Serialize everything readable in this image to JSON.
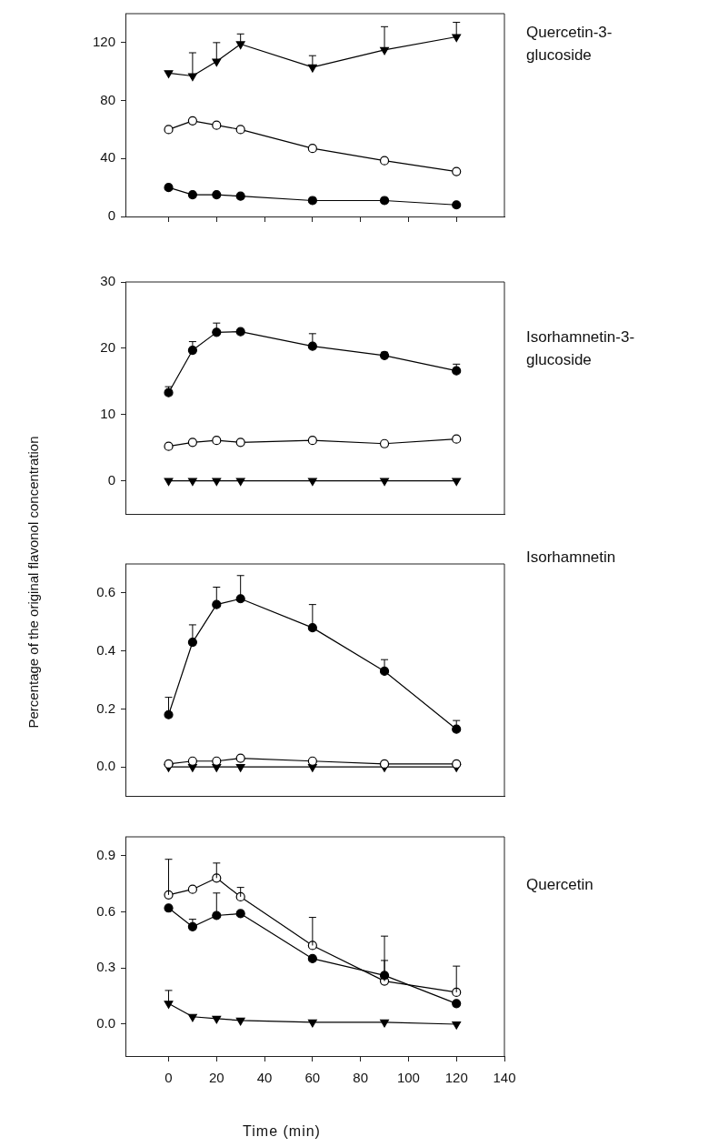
{
  "chart_data": [
    {
      "type": "line",
      "annotations": [
        "Quercetin-3-glucoside"
      ],
      "x": [
        0,
        10,
        20,
        30,
        60,
        90,
        120
      ],
      "xlim": [
        -18,
        140
      ],
      "xticks": [
        {
          "value": 0,
          "label": null
        },
        {
          "value": 20,
          "label": null
        },
        {
          "value": 40,
          "label": null
        },
        {
          "value": 60,
          "label": null
        },
        {
          "value": 80,
          "label": null
        },
        {
          "value": 100,
          "label": null
        },
        {
          "value": 120,
          "label": null
        }
      ],
      "ylim": [
        0,
        140
      ],
      "yticks": [
        0,
        40,
        80,
        120
      ],
      "tick_labels": "y",
      "legend": false,
      "series": [
        {
          "color": "#000000",
          "marker": "triangle",
          "values": [
            99,
            97,
            107,
            119,
            103,
            115,
            124
          ],
          "errors": [
            null,
            [
              97,
              113
            ],
            [
              107,
              120
            ],
            [
              119,
              126
            ],
            [
              103,
              111
            ],
            [
              115,
              131
            ],
            [
              124,
              134
            ]
          ]
        },
        {
          "color": "#ffffff",
          "marker": "circle",
          "values": [
            60,
            66,
            63,
            60,
            47,
            38.5,
            31
          ]
        },
        {
          "color": "#000000",
          "marker": "circle",
          "values": [
            20,
            15,
            15,
            14,
            11,
            11,
            8
          ]
        }
      ]
    },
    {
      "type": "line",
      "annotations": [
        "Isorhamnetin-3-glucoside"
      ],
      "x": [
        0,
        10,
        20,
        30,
        60,
        90,
        120
      ],
      "xlim": [
        -18,
        140
      ],
      "ylim": [
        -5,
        30
      ],
      "yticks": [
        0,
        10,
        20,
        30
      ],
      "tick_labels": "y",
      "legend": false,
      "series": [
        {
          "color": "#000000",
          "marker": "circle",
          "values": [
            13.3,
            19.7,
            22.4,
            22.5,
            20.3,
            18.9,
            16.6
          ],
          "errors": [
            [
              13.3,
              14.2
            ],
            [
              19.7,
              21
            ],
            [
              22.4,
              23.8
            ],
            null,
            [
              20.3,
              22.2
            ],
            [
              18.9,
              19.4
            ],
            [
              16.6,
              17.6
            ]
          ]
        },
        {
          "color": "#ffffff",
          "marker": "circle",
          "values": [
            5.2,
            5.8,
            6.1,
            5.8,
            6.1,
            5.6,
            6.3
          ]
        },
        {
          "color": "#000000",
          "marker": "triangle",
          "values": [
            0,
            0,
            0,
            0,
            0,
            0,
            0
          ]
        }
      ]
    },
    {
      "type": "line",
      "annotations": [
        "Isorhamnetin"
      ],
      "ylabel": "Percentage of the original flavonol concentration",
      "x": [
        0,
        10,
        20,
        30,
        60,
        90,
        120
      ],
      "xlim": [
        -18,
        140
      ],
      "ylim": [
        -0.1,
        0.7
      ],
      "yticks": [
        {
          "value": 0,
          "label": "0.0"
        },
        0.2,
        0.4,
        0.6
      ],
      "tick_labels": "y",
      "legend": false,
      "series": [
        {
          "color": "#000000",
          "marker": "circle",
          "values": [
            0.18,
            0.43,
            0.56,
            0.58,
            0.48,
            0.33,
            0.13
          ],
          "errors": [
            [
              0.18,
              0.24
            ],
            [
              0.43,
              0.49
            ],
            [
              0.56,
              0.62
            ],
            [
              0.58,
              0.66
            ],
            [
              0.48,
              0.56
            ],
            [
              0.33,
              0.37
            ],
            [
              0.13,
              0.16
            ]
          ]
        },
        {
          "color": "#ffffff",
          "marker": "circle",
          "values": [
            0.01,
            0.02,
            0.02,
            0.03,
            0.02,
            0.01,
            0.01
          ]
        },
        {
          "color": "#000000",
          "marker": "triangle",
          "values": [
            0,
            0,
            0,
            0,
            0,
            0,
            0
          ]
        }
      ]
    },
    {
      "type": "line",
      "annotations": [
        "Quercetin"
      ],
      "xlabel": "Time (min)",
      "x": [
        0,
        10,
        20,
        30,
        60,
        90,
        120
      ],
      "xlim": [
        -18,
        140
      ],
      "xticks": [
        0,
        20,
        40,
        60,
        80,
        100,
        120,
        140
      ],
      "ylim": [
        -0.17,
        1.0
      ],
      "yticks": [
        {
          "value": 0,
          "label": "0.0"
        },
        0.3,
        0.6,
        0.9
      ],
      "legend": false,
      "series": [
        {
          "color": "#000000",
          "marker": "circle",
          "values": [
            0.62,
            0.52,
            0.58,
            0.59,
            0.35,
            0.26,
            0.11
          ],
          "errors": [
            null,
            [
              0.52,
              0.56
            ],
            [
              0.58,
              0.7
            ],
            null,
            null,
            [
              0.26,
              0.34
            ],
            null
          ]
        },
        {
          "color": "#ffffff",
          "marker": "circle",
          "values": [
            0.69,
            0.72,
            0.78,
            0.68,
            0.42,
            0.23,
            0.17
          ],
          "errors": [
            [
              0.69,
              0.88
            ],
            null,
            [
              0.78,
              0.86
            ],
            [
              0.68,
              0.73
            ],
            [
              0.42,
              0.57
            ],
            [
              0.23,
              0.47
            ],
            [
              0.17,
              0.31
            ]
          ]
        },
        {
          "color": "#000000",
          "marker": "triangle",
          "values": [
            0.11,
            0.04,
            0.03,
            0.02,
            0.01,
            0.01,
            0
          ],
          "errors": [
            [
              0.11,
              0.18
            ],
            null,
            null,
            null,
            null,
            null,
            null
          ]
        }
      ]
    }
  ]
}
